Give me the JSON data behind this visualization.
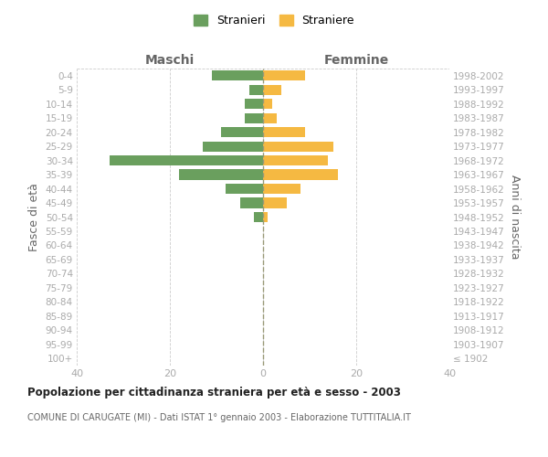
{
  "age_groups": [
    "100+",
    "95-99",
    "90-94",
    "85-89",
    "80-84",
    "75-79",
    "70-74",
    "65-69",
    "60-64",
    "55-59",
    "50-54",
    "45-49",
    "40-44",
    "35-39",
    "30-34",
    "25-29",
    "20-24",
    "15-19",
    "10-14",
    "5-9",
    "0-4"
  ],
  "birth_years": [
    "≤ 1902",
    "1903-1907",
    "1908-1912",
    "1913-1917",
    "1918-1922",
    "1923-1927",
    "1928-1932",
    "1933-1937",
    "1938-1942",
    "1943-1947",
    "1948-1952",
    "1953-1957",
    "1958-1962",
    "1963-1967",
    "1968-1972",
    "1973-1977",
    "1978-1982",
    "1983-1987",
    "1988-1992",
    "1993-1997",
    "1998-2002"
  ],
  "maschi": [
    0,
    0,
    0,
    0,
    0,
    0,
    0,
    0,
    0,
    0,
    2,
    5,
    8,
    18,
    33,
    13,
    9,
    4,
    4,
    3,
    11
  ],
  "femmine": [
    0,
    0,
    0,
    0,
    0,
    0,
    0,
    0,
    0,
    0,
    1,
    5,
    8,
    16,
    14,
    15,
    9,
    3,
    2,
    4,
    9
  ],
  "maschi_color": "#6a9f5e",
  "femmine_color": "#f5b942",
  "xlim": 40,
  "title": "Popolazione per cittadinanza straniera per età e sesso - 2003",
  "subtitle": "COMUNE DI CARUGATE (MI) - Dati ISTAT 1° gennaio 2003 - Elaborazione TUTTITALIA.IT",
  "ylabel_left": "Fasce di età",
  "ylabel_right": "Anni di nascita",
  "legend_stranieri": "Stranieri",
  "legend_straniere": "Straniere",
  "maschi_label": "Maschi",
  "femmine_label": "Femmine",
  "background_color": "#ffffff",
  "grid_color": "#cccccc",
  "tick_label_color": "#aaaaaa",
  "axis_label_color": "#666666",
  "title_color": "#222222"
}
